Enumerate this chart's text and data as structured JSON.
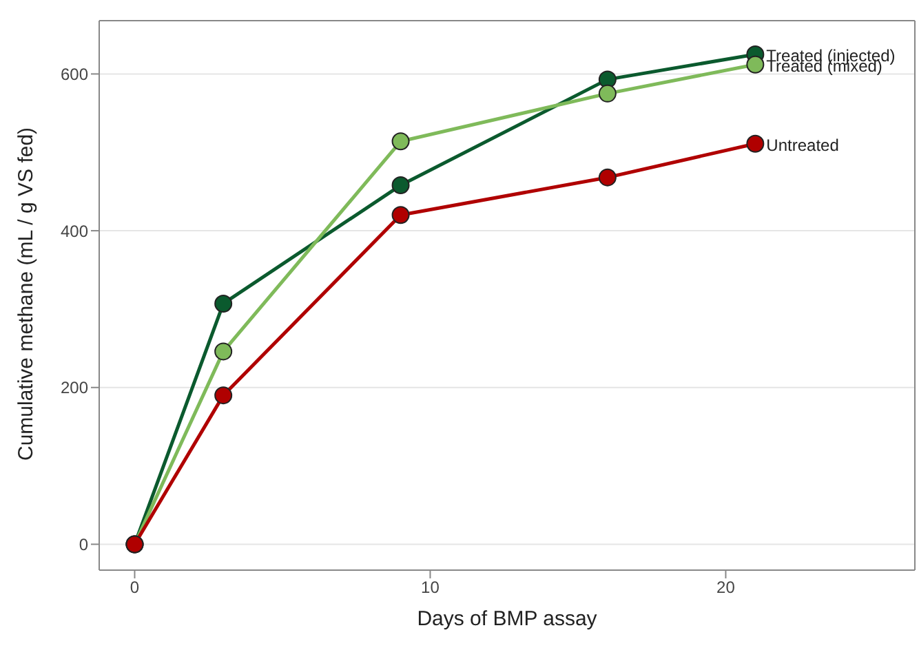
{
  "chart_data": {
    "type": "line",
    "xlabel": "Days of BMP assay",
    "ylabel": "Cumulative methane (mL / g VS fed)",
    "x": [
      0,
      3,
      9,
      16,
      21
    ],
    "series": [
      {
        "name": "Treated (injected)",
        "color": "#0b5a2e",
        "values": [
          0,
          307,
          458,
          593,
          625
        ]
      },
      {
        "name": "Treated (mixed)",
        "color": "#7fba5a",
        "values": [
          0,
          246,
          514,
          575,
          612
        ]
      },
      {
        "name": "Untreated",
        "color": "#b00000",
        "values": [
          0,
          190,
          420,
          468,
          511
        ]
      }
    ],
    "xlim": [
      -1.2,
      26.4
    ],
    "xticks": [
      0,
      10,
      20
    ],
    "ylim": [
      -33,
      668
    ],
    "yticks": [
      0,
      200,
      400,
      600
    ],
    "grid": "y",
    "legend": false,
    "marker": "circle",
    "line_style": "solid"
  }
}
